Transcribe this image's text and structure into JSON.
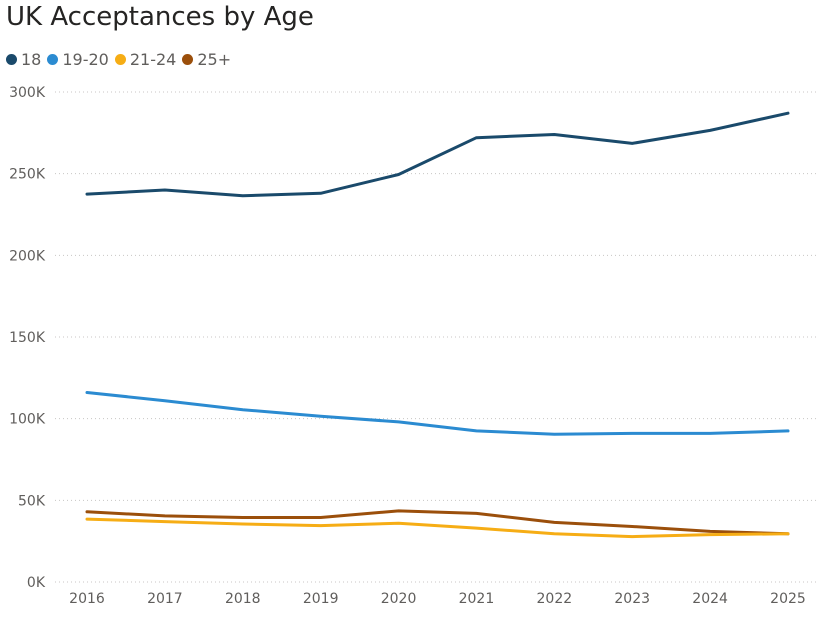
{
  "chart_data": {
    "type": "line",
    "title": "UK Acceptances by Age",
    "xlabel": "",
    "ylabel": "",
    "x": [
      2016,
      2017,
      2018,
      2019,
      2020,
      2021,
      2022,
      2023,
      2024,
      2025
    ],
    "ylim": [
      0,
      300000
    ],
    "yticks": [
      0,
      50000,
      100000,
      150000,
      200000,
      250000,
      300000
    ],
    "ytick_labels": [
      "0K",
      "50K",
      "100K",
      "150K",
      "200K",
      "250K",
      "300K"
    ],
    "grid": "horizontal dotted",
    "legend_position": "top-left",
    "series": [
      {
        "name": "18",
        "color": "#1a4a6b",
        "values": [
          237500,
          240000,
          236500,
          238000,
          249500,
          272000,
          274000,
          268500,
          276500,
          287000
        ]
      },
      {
        "name": "19-20",
        "color": "#2b8bd1",
        "values": [
          116000,
          111000,
          105500,
          101500,
          98000,
          92500,
          90500,
          91000,
          91000,
          92500
        ]
      },
      {
        "name": "21-24",
        "color": "#f6ad15",
        "values": [
          38500,
          37000,
          35500,
          34500,
          36000,
          33000,
          29500,
          27800,
          29000,
          29500
        ]
      },
      {
        "name": "25+",
        "color": "#9b4f0b",
        "values": [
          43000,
          40500,
          39500,
          39500,
          43500,
          42000,
          36500,
          34000,
          31000,
          29500
        ]
      }
    ]
  }
}
